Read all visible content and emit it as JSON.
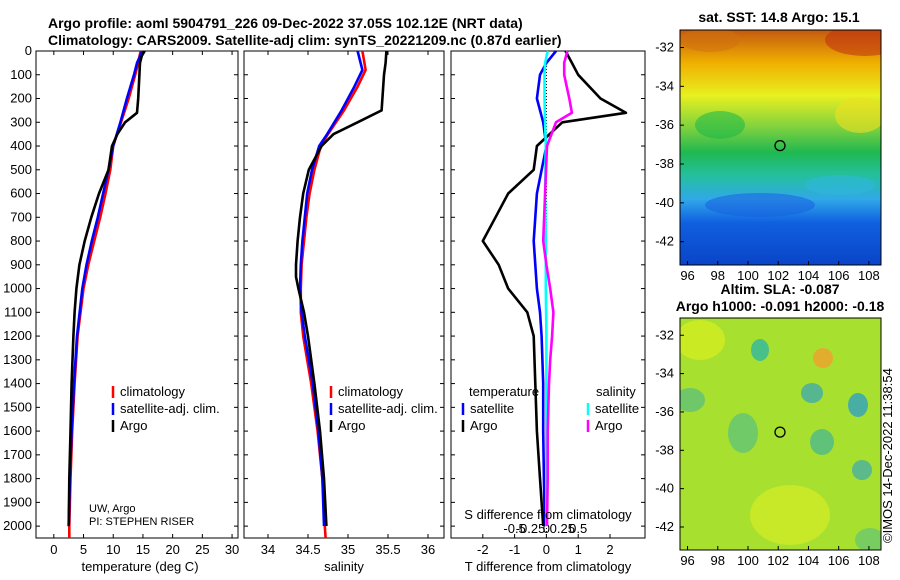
{
  "header": {
    "line1": "Argo profile: aoml 5904791_226 09-Dec-2022 37.05S 102.12E (NRT data)",
    "line2": "Climatology: CARS2009. Satellite-adj clim: synTS_20221209.nc (0.87d earlier)"
  },
  "side_label": "©IMOS 14-Dec-2022 11:38:54",
  "credit": {
    "line1": "UW, Argo",
    "line2": "PI: STEPHEN RISER"
  },
  "colors": {
    "climatology": "#ff0000",
    "satellite_clim": "#0000ff",
    "argo": "#000000",
    "sat_temp_diff": "#0000ff",
    "argo_temp_diff": "#000000",
    "sat_sal_diff": "#00ffff",
    "argo_sal_diff": "#ff00ff"
  },
  "chart_data": [
    {
      "type": "line",
      "name": "temperature-profile",
      "xlabel": "temperature (deg C)",
      "ylabel": "",
      "xlim": [
        -3,
        31
      ],
      "ylim": [
        2050,
        0
      ],
      "xticks": [
        "0",
        "5",
        "10",
        "15",
        "20",
        "25",
        "30"
      ],
      "yticks": [
        "0",
        "100",
        "200",
        "300",
        "400",
        "500",
        "600",
        "700",
        "800",
        "900",
        "1000",
        "1100",
        "1200",
        "1300",
        "1400",
        "1500",
        "1600",
        "1700",
        "1800",
        "1900",
        "2000"
      ],
      "legend": [
        "climatology",
        "satellite-adj. clim.",
        "Argo"
      ],
      "series": [
        {
          "name": "climatology",
          "color": "#ff0000",
          "depth": [
            0,
            50,
            100,
            200,
            300,
            400,
            500,
            600,
            700,
            800,
            900,
            1000,
            1200,
            1400,
            1600,
            1800,
            2000,
            2050
          ],
          "values": [
            14.6,
            14.2,
            13.7,
            12.6,
            11.3,
            10.0,
            9.5,
            8.7,
            7.8,
            6.8,
            5.8,
            5.0,
            4.0,
            3.5,
            3.1,
            2.8,
            2.6,
            2.6
          ]
        },
        {
          "name": "satellite-adj. clim.",
          "color": "#0000ff",
          "depth": [
            0,
            50,
            100,
            200,
            300,
            400,
            500,
            600,
            700,
            800,
            900,
            1000,
            1200,
            1400,
            1600,
            1800,
            2000
          ],
          "values": [
            14.9,
            14.0,
            13.5,
            12.3,
            11.2,
            10.0,
            9.2,
            8.3,
            7.4,
            6.4,
            5.5,
            4.8,
            3.9,
            3.4,
            3.0,
            2.7,
            2.5
          ]
        },
        {
          "name": "Argo",
          "color": "#000000",
          "depth": [
            0,
            20,
            50,
            100,
            200,
            260,
            300,
            350,
            400,
            500,
            600,
            700,
            800,
            900,
            1000,
            1100,
            1200,
            1400,
            1600,
            1800,
            2000
          ],
          "values": [
            15.3,
            14.8,
            14.5,
            14.4,
            14.2,
            14.0,
            12.0,
            10.7,
            9.8,
            9.2,
            7.6,
            6.3,
            5.2,
            4.3,
            3.8,
            3.5,
            3.3,
            3.0,
            2.8,
            2.6,
            2.5
          ]
        }
      ]
    },
    {
      "type": "line",
      "name": "salinity-profile",
      "xlabel": "salinity",
      "xlim": [
        33.7,
        36.2
      ],
      "ylim": [
        2050,
        0
      ],
      "xticks": [
        "34",
        "34.5",
        "35",
        "35.5",
        "36"
      ],
      "legend": [
        "climatology",
        "satellite-adj. clim.",
        "Argo"
      ],
      "series": [
        {
          "name": "climatology",
          "color": "#ff0000",
          "depth": [
            0,
            80,
            150,
            250,
            350,
            400,
            500,
            600,
            700,
            800,
            900,
            1000,
            1100,
            1200,
            1400,
            1600,
            1800,
            2000,
            2050
          ],
          "values": [
            35.18,
            35.22,
            35.12,
            34.95,
            34.75,
            34.66,
            34.58,
            34.52,
            34.48,
            34.45,
            34.42,
            34.41,
            34.41,
            34.44,
            34.54,
            34.62,
            34.68,
            34.71,
            34.72
          ]
        },
        {
          "name": "satellite-adj. clim.",
          "color": "#0000ff",
          "depth": [
            0,
            80,
            150,
            250,
            350,
            400,
            500,
            600,
            700,
            800,
            900,
            1000,
            1100,
            1200,
            1400,
            1600,
            1800,
            2000
          ],
          "values": [
            35.12,
            35.18,
            35.08,
            34.92,
            34.74,
            34.64,
            34.55,
            34.49,
            34.46,
            34.43,
            34.41,
            34.4,
            34.42,
            34.46,
            34.56,
            34.63,
            34.68,
            34.7
          ]
        },
        {
          "name": "Argo",
          "color": "#000000",
          "depth": [
            0,
            50,
            100,
            250,
            300,
            350,
            400,
            500,
            600,
            700,
            800,
            900,
            950,
            1000,
            1100,
            1200,
            1400,
            1600,
            1800,
            2000
          ],
          "values": [
            35.48,
            35.47,
            35.45,
            35.42,
            35.12,
            34.82,
            34.67,
            34.51,
            34.44,
            34.4,
            34.37,
            34.35,
            34.35,
            34.38,
            34.45,
            34.5,
            34.58,
            34.65,
            34.7,
            34.73
          ]
        }
      ]
    },
    {
      "type": "line",
      "name": "difference-profile",
      "xlabel": "T difference from climatology",
      "toplabel": "S difference from climatology",
      "xlim": [
        -3,
        3.1
      ],
      "ylim": [
        2050,
        0
      ],
      "xticks": [
        "-2",
        "-1",
        "0",
        "1",
        "2"
      ],
      "sticks": [
        "-0.5",
        "-0.25",
        "0",
        "0.25",
        "0.5"
      ],
      "legend": {
        "temperature_title": "temperature",
        "salinity_title": "salinity",
        "sat": "satellite",
        "argo": "Argo"
      },
      "series": [
        {
          "name": "temperature satellite",
          "color": "#0000ff",
          "depth": [
            0,
            50,
            100,
            200,
            300,
            400,
            600,
            800,
            1000,
            1100,
            1200,
            1400,
            1600,
            1800,
            2000
          ],
          "values": [
            0.3,
            0.0,
            -0.2,
            -0.3,
            -0.1,
            0.0,
            -0.3,
            -0.4,
            -0.3,
            -0.2,
            -0.15,
            -0.1,
            -0.1,
            -0.08,
            -0.05
          ]
        },
        {
          "name": "temperature Argo",
          "color": "#000000",
          "depth": [
            0,
            50,
            100,
            200,
            260,
            300,
            400,
            500,
            600,
            700,
            800,
            900,
            1000,
            1100,
            1200,
            1400,
            1600,
            1800,
            2000
          ],
          "values": [
            0.6,
            0.8,
            1.0,
            1.7,
            2.5,
            0.5,
            -0.3,
            -0.4,
            -1.2,
            -1.6,
            -2.0,
            -1.5,
            -1.2,
            -0.6,
            -0.4,
            -0.35,
            -0.3,
            -0.2,
            -0.1
          ]
        },
        {
          "name": "salinity satellite",
          "color": "#00ffff",
          "depth": [
            0,
            50,
            100,
            200,
            300,
            400,
            600,
            800,
            1000,
            1200,
            1400,
            1600,
            1800,
            2000
          ],
          "values": [
            0.02,
            -0.02,
            -0.03,
            -0.03,
            -0.02,
            -0.01,
            -0.02,
            -0.01,
            -0.01,
            0.0,
            0.0,
            0.0,
            0.0,
            0.0
          ]
        },
        {
          "name": "salinity Argo",
          "color": "#ff00ff",
          "depth": [
            0,
            50,
            100,
            200,
            260,
            300,
            400,
            600,
            800,
            900,
            1000,
            1100,
            1200,
            1300,
            1400,
            1600,
            1800,
            2000
          ],
          "values": [
            0.33,
            0.28,
            0.28,
            0.36,
            0.4,
            0.15,
            0.01,
            -0.02,
            -0.05,
            0.0,
            0.06,
            0.11,
            0.09,
            0.06,
            0.04,
            0.02,
            0.02,
            0.01
          ]
        }
      ]
    },
    {
      "type": "heatmap",
      "name": "sst-map",
      "title": "sat. SST: 14.8 Argo: 15.1",
      "xticks": [
        "96",
        "98",
        "100",
        "102",
        "104",
        "106",
        "108"
      ],
      "yticks": [
        "-32",
        "-34",
        "-36",
        "-38",
        "-40",
        "-42"
      ],
      "xlim": [
        95.5,
        108.8
      ],
      "ylim": [
        -43.2,
        -31.1
      ],
      "marker": {
        "lon": 102.12,
        "lat": -37.05
      }
    },
    {
      "type": "heatmap",
      "name": "sla-map",
      "title_line1": "Altim. SLA: -0.087",
      "title_line2": "Argo h1000: -0.091 h2000: -0.18",
      "xticks": [
        "96",
        "98",
        "100",
        "102",
        "104",
        "106",
        "108"
      ],
      "yticks": [
        "-32",
        "-34",
        "-36",
        "-38",
        "-40",
        "-42"
      ],
      "xlim": [
        95.5,
        108.8
      ],
      "ylim": [
        -43.2,
        -31.1
      ],
      "marker": {
        "lon": 102.12,
        "lat": -37.05
      }
    }
  ]
}
